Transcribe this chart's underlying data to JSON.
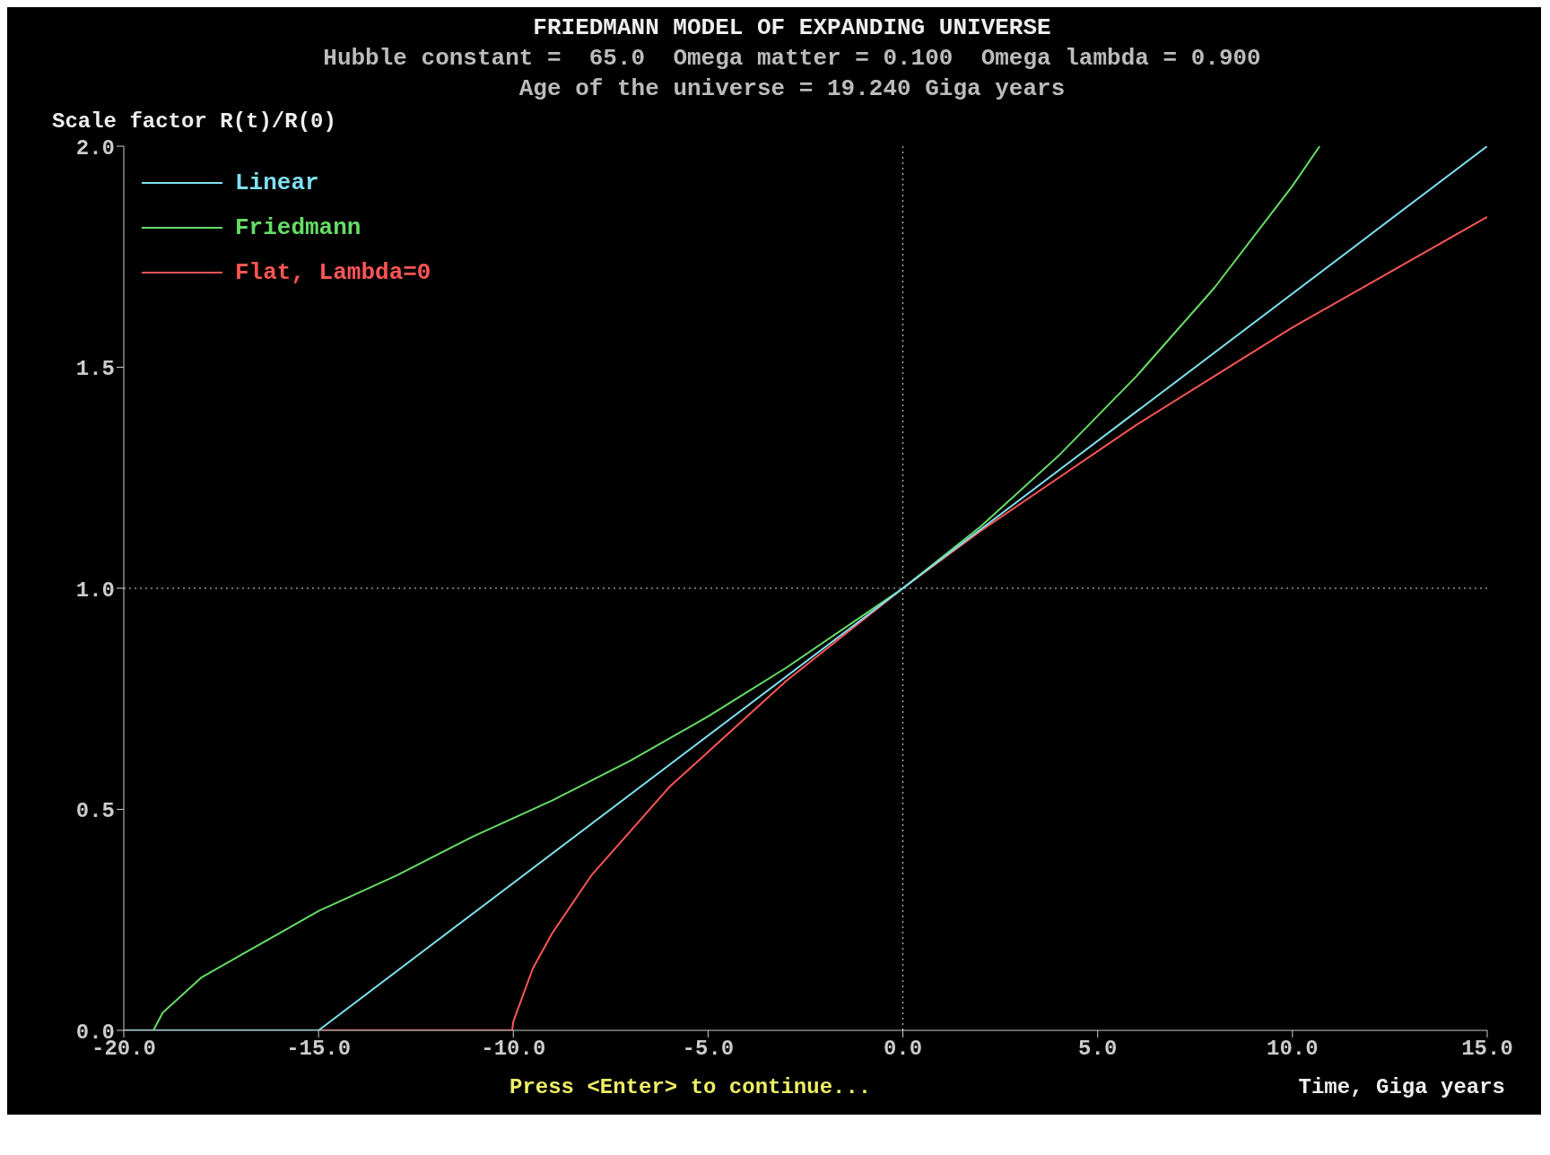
{
  "chart_data": {
    "type": "line",
    "title": "FRIEDMANN MODEL OF EXPANDING UNIVERSE",
    "subtitle": "Hubble constant =  65.0  Omega matter = 0.100  Omega lambda = 0.900\nAge of the universe = 19.240 Giga years",
    "xlabel": "Time, Giga years",
    "ylabel": "Scale factor R(t)/R(0)",
    "annotations": [
      "Press <Enter> to continue..."
    ],
    "xlim": [
      -20,
      15
    ],
    "ylim": [
      0,
      2
    ],
    "xticks": [
      {
        "value": -20,
        "label": "-20.0"
      },
      {
        "value": -15,
        "label": "-15.0"
      },
      {
        "value": -10,
        "label": "-10.0"
      },
      {
        "value": -5,
        "label": "-5.0"
      },
      {
        "value": 0,
        "label": "0.0"
      },
      {
        "value": 5,
        "label": "5.0"
      },
      {
        "value": 10,
        "label": "10.0"
      },
      {
        "value": 15,
        "label": "15.0"
      }
    ],
    "yticks": [
      {
        "value": 0,
        "label": "0.0"
      },
      {
        "value": 0.5,
        "label": "0.5"
      },
      {
        "value": 1,
        "label": "1.0"
      },
      {
        "value": 1.5,
        "label": "1.5"
      },
      {
        "value": 2,
        "label": "2.0"
      }
    ],
    "series": [
      {
        "name": "Linear",
        "color": "#7fdff0",
        "x": [
          -20,
          -15,
          0,
          15
        ],
        "values": [
          0,
          0,
          1,
          2
        ]
      },
      {
        "name": "Friedmann",
        "color": "#66dd66",
        "x": [
          -20,
          -19.24,
          -19,
          -18.5,
          -18,
          -17,
          -16,
          -15,
          -13,
          -11,
          -9,
          -7,
          -5,
          -3,
          -1,
          0,
          2,
          4,
          6,
          8,
          10,
          10.7
        ],
        "values": [
          0,
          0,
          0.04,
          0.08,
          0.12,
          0.17,
          0.22,
          0.27,
          0.35,
          0.44,
          0.52,
          0.61,
          0.71,
          0.82,
          0.94,
          1,
          1.14,
          1.3,
          1.48,
          1.68,
          1.91,
          2
        ]
      },
      {
        "name": "Flat, Lambda=0",
        "color": "#ff5555",
        "x": [
          -20,
          -10.03,
          -10,
          -9.5,
          -9,
          -8,
          -7,
          -6,
          -5,
          -4,
          -3,
          -2,
          -1,
          0,
          2,
          4,
          6,
          8,
          10,
          12,
          15
        ],
        "values": [
          0,
          0,
          0.02,
          0.14,
          0.22,
          0.35,
          0.45,
          0.55,
          0.63,
          0.71,
          0.79,
          0.86,
          0.93,
          1,
          1.13,
          1.25,
          1.37,
          1.48,
          1.59,
          1.69,
          1.84
        ]
      }
    ],
    "ref_lines": [
      {
        "axis": "x",
        "value": 0,
        "color": "#dddddd",
        "line_style": "dotted"
      },
      {
        "axis": "y",
        "value": 1,
        "color": "#dddddd",
        "line_style": "dotted"
      }
    ],
    "grid": false,
    "legend": "top left",
    "marker": "none",
    "line_style": "solid"
  }
}
